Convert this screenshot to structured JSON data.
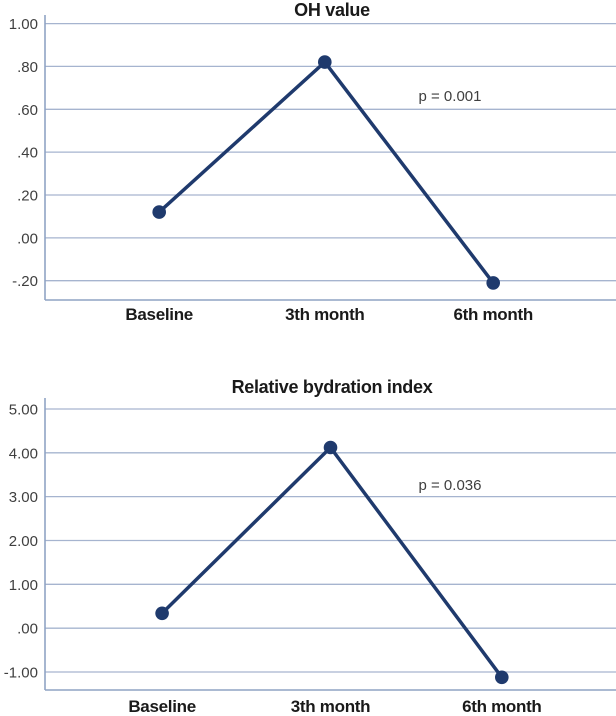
{
  "colors": {
    "line": "#1f3a6d",
    "marker": "#1f3a6d",
    "gridline": "#a6b4cf",
    "axis": "#8fa3c4",
    "title_text": "#1a1a1a",
    "tick_text": "#3f3f3f",
    "annotation_text": "#3f3f3f",
    "background": "#ffffff"
  },
  "chart_data": [
    {
      "type": "line",
      "title": "OH value",
      "categories": [
        "Baseline",
        "3th month",
        "6th month"
      ],
      "values": [
        0.12,
        0.82,
        -0.21
      ],
      "annotation": "p = 0.001",
      "yticks": [
        1.0,
        0.8,
        0.6,
        0.4,
        0.2,
        0.0,
        -0.2
      ],
      "ytick_labels": [
        "1.00",
        ".80",
        ".60",
        ".40",
        ".20",
        ".00",
        "-.20"
      ],
      "ylim": [
        -0.29,
        1.04
      ],
      "xlabel": "",
      "ylabel": "",
      "grid": true,
      "legend": false
    },
    {
      "type": "line",
      "title": "Relative bydration index",
      "categories": [
        "Baseline",
        "3th month",
        "6th month"
      ],
      "values": [
        0.34,
        4.12,
        -1.12
      ],
      "annotation": "p = 0.036",
      "yticks": [
        5.0,
        4.0,
        3.0,
        2.0,
        1.0,
        0.0,
        -1.0
      ],
      "ytick_labels": [
        "5.00",
        "4.00",
        "3.00",
        "2.00",
        "1.00",
        ".00",
        "-1.00"
      ],
      "ylim": [
        -1.41,
        5.25
      ],
      "xlabel": "",
      "ylabel": "",
      "grid": true,
      "legend": false
    }
  ]
}
